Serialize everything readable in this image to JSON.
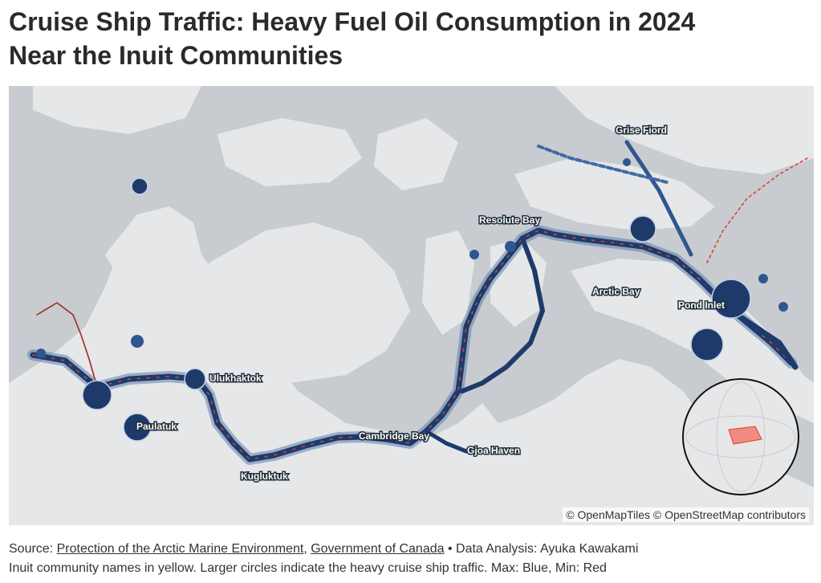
{
  "title": {
    "line1": "Cruise Ship Traffic: Heavy Fuel Oil Consumption in 2024",
    "line2": "Near the Inuit Communities"
  },
  "map": {
    "communities": [
      "Grise Fiord",
      "Resolute Bay",
      "Arctic Bay",
      "Pond Inlet",
      "Ulukhaktok",
      "Paulatuk",
      "Cambridge Bay",
      "Gjoa Haven",
      "Kugluktuk"
    ],
    "attribution": "© OpenMapTiles © OpenStreetMap contributors",
    "colors": {
      "max": "#1d3a6b",
      "min": "#d9442b",
      "water": "#c8ccd0",
      "land": "#e8e8e8",
      "inset_highlight": "#f28b82"
    }
  },
  "footer": {
    "source_prefix": "Source: ",
    "source_link_1": "Protection of the Arctic Marine Environment",
    "separator": ", ",
    "source_link_2": "Government of Canada",
    "analysis": " • Data Analysis: Ayuka Kawakami",
    "note": "Inuit community names in yellow. Larger circles indicate the heavy cruise ship traffic. Max: Blue, Min: Red"
  }
}
